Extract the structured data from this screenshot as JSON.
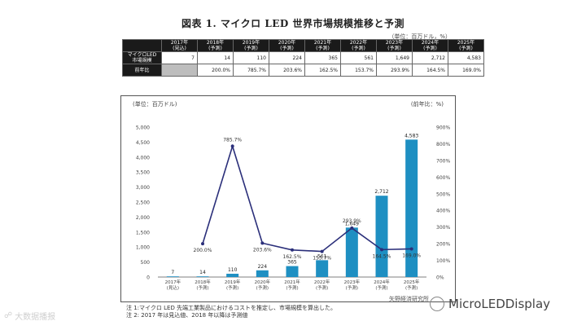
{
  "title": "図表 1. マイクロ LED 世界市場規模推移と予測",
  "unit_note": "（単位：百万ドル，%）",
  "table": {
    "headers": [
      "2017年\n(見込)",
      "2018年\n(予測)",
      "2019年\n(予測)",
      "2020年\n(予測)",
      "2021年\n(予測)",
      "2022年\n(予測)",
      "2023年\n(予測)",
      "2024年\n(予測)",
      "2025年\n(予測)"
    ],
    "rows": [
      {
        "label": "マイクロLED\n市場規模",
        "cells": [
          "7",
          "14",
          "110",
          "224",
          "365",
          "561",
          "1,649",
          "2,712",
          "4,583"
        ]
      },
      {
        "label": "前年比",
        "cells": [
          "",
          "200.0%",
          "785.7%",
          "203.6%",
          "162.5%",
          "153.7%",
          "293.9%",
          "164.5%",
          "169.0%"
        ]
      }
    ]
  },
  "chart_data": {
    "type": "bar+line",
    "left_axis_title": "(単位：百万ドル)",
    "right_axis_title": "(前年比：%)",
    "categories": [
      "2017年\n(見込)",
      "2018年\n(予測)",
      "2019年\n(予測)",
      "2020年\n(予測)",
      "2021年\n(予測)",
      "2022年\n(予測)",
      "2023年\n(予測)",
      "2024年\n(予測)",
      "2025年\n(予測)"
    ],
    "bars": {
      "values": [
        7,
        14,
        110,
        224,
        365,
        561,
        1649,
        2712,
        4583
      ],
      "labels": [
        "7",
        "14",
        "110",
        "224",
        "365",
        "561",
        "1,649",
        "2,712",
        "4,583"
      ],
      "color": "#1e8fc2"
    },
    "line": {
      "values": [
        null,
        200.0,
        785.7,
        203.6,
        162.5,
        153.7,
        293.9,
        164.5,
        169.0
      ],
      "labels": [
        "",
        "200.0%",
        "785.7%",
        "203.6%",
        "162.5%",
        "153.7%",
        "293.9%",
        "164.5%",
        "169.0%"
      ],
      "color": "#2b2f7a"
    },
    "left_ticks": [
      "0",
      "500",
      "1,000",
      "1,500",
      "2,000",
      "2,500",
      "3,000",
      "3,500",
      "4,000",
      "4,500",
      "5,000"
    ],
    "right_ticks": [
      "0%",
      "100%",
      "200%",
      "300%",
      "400%",
      "500%",
      "600%",
      "700%",
      "800%",
      "900%"
    ],
    "ylim_left": [
      0,
      5000
    ],
    "ylim_right": [
      0,
      900
    ]
  },
  "notes": [
    "注 1:マイクロ LED 先端工業製品におけるコストを推定し、市場規模を算出した。",
    "注 2: 2017 年は見込値、2018 年以降は予測値"
  ],
  "source": "矢野経済研究所",
  "watermark_left": "大数据播报",
  "watermark_right": "MicroLEDDisplay"
}
